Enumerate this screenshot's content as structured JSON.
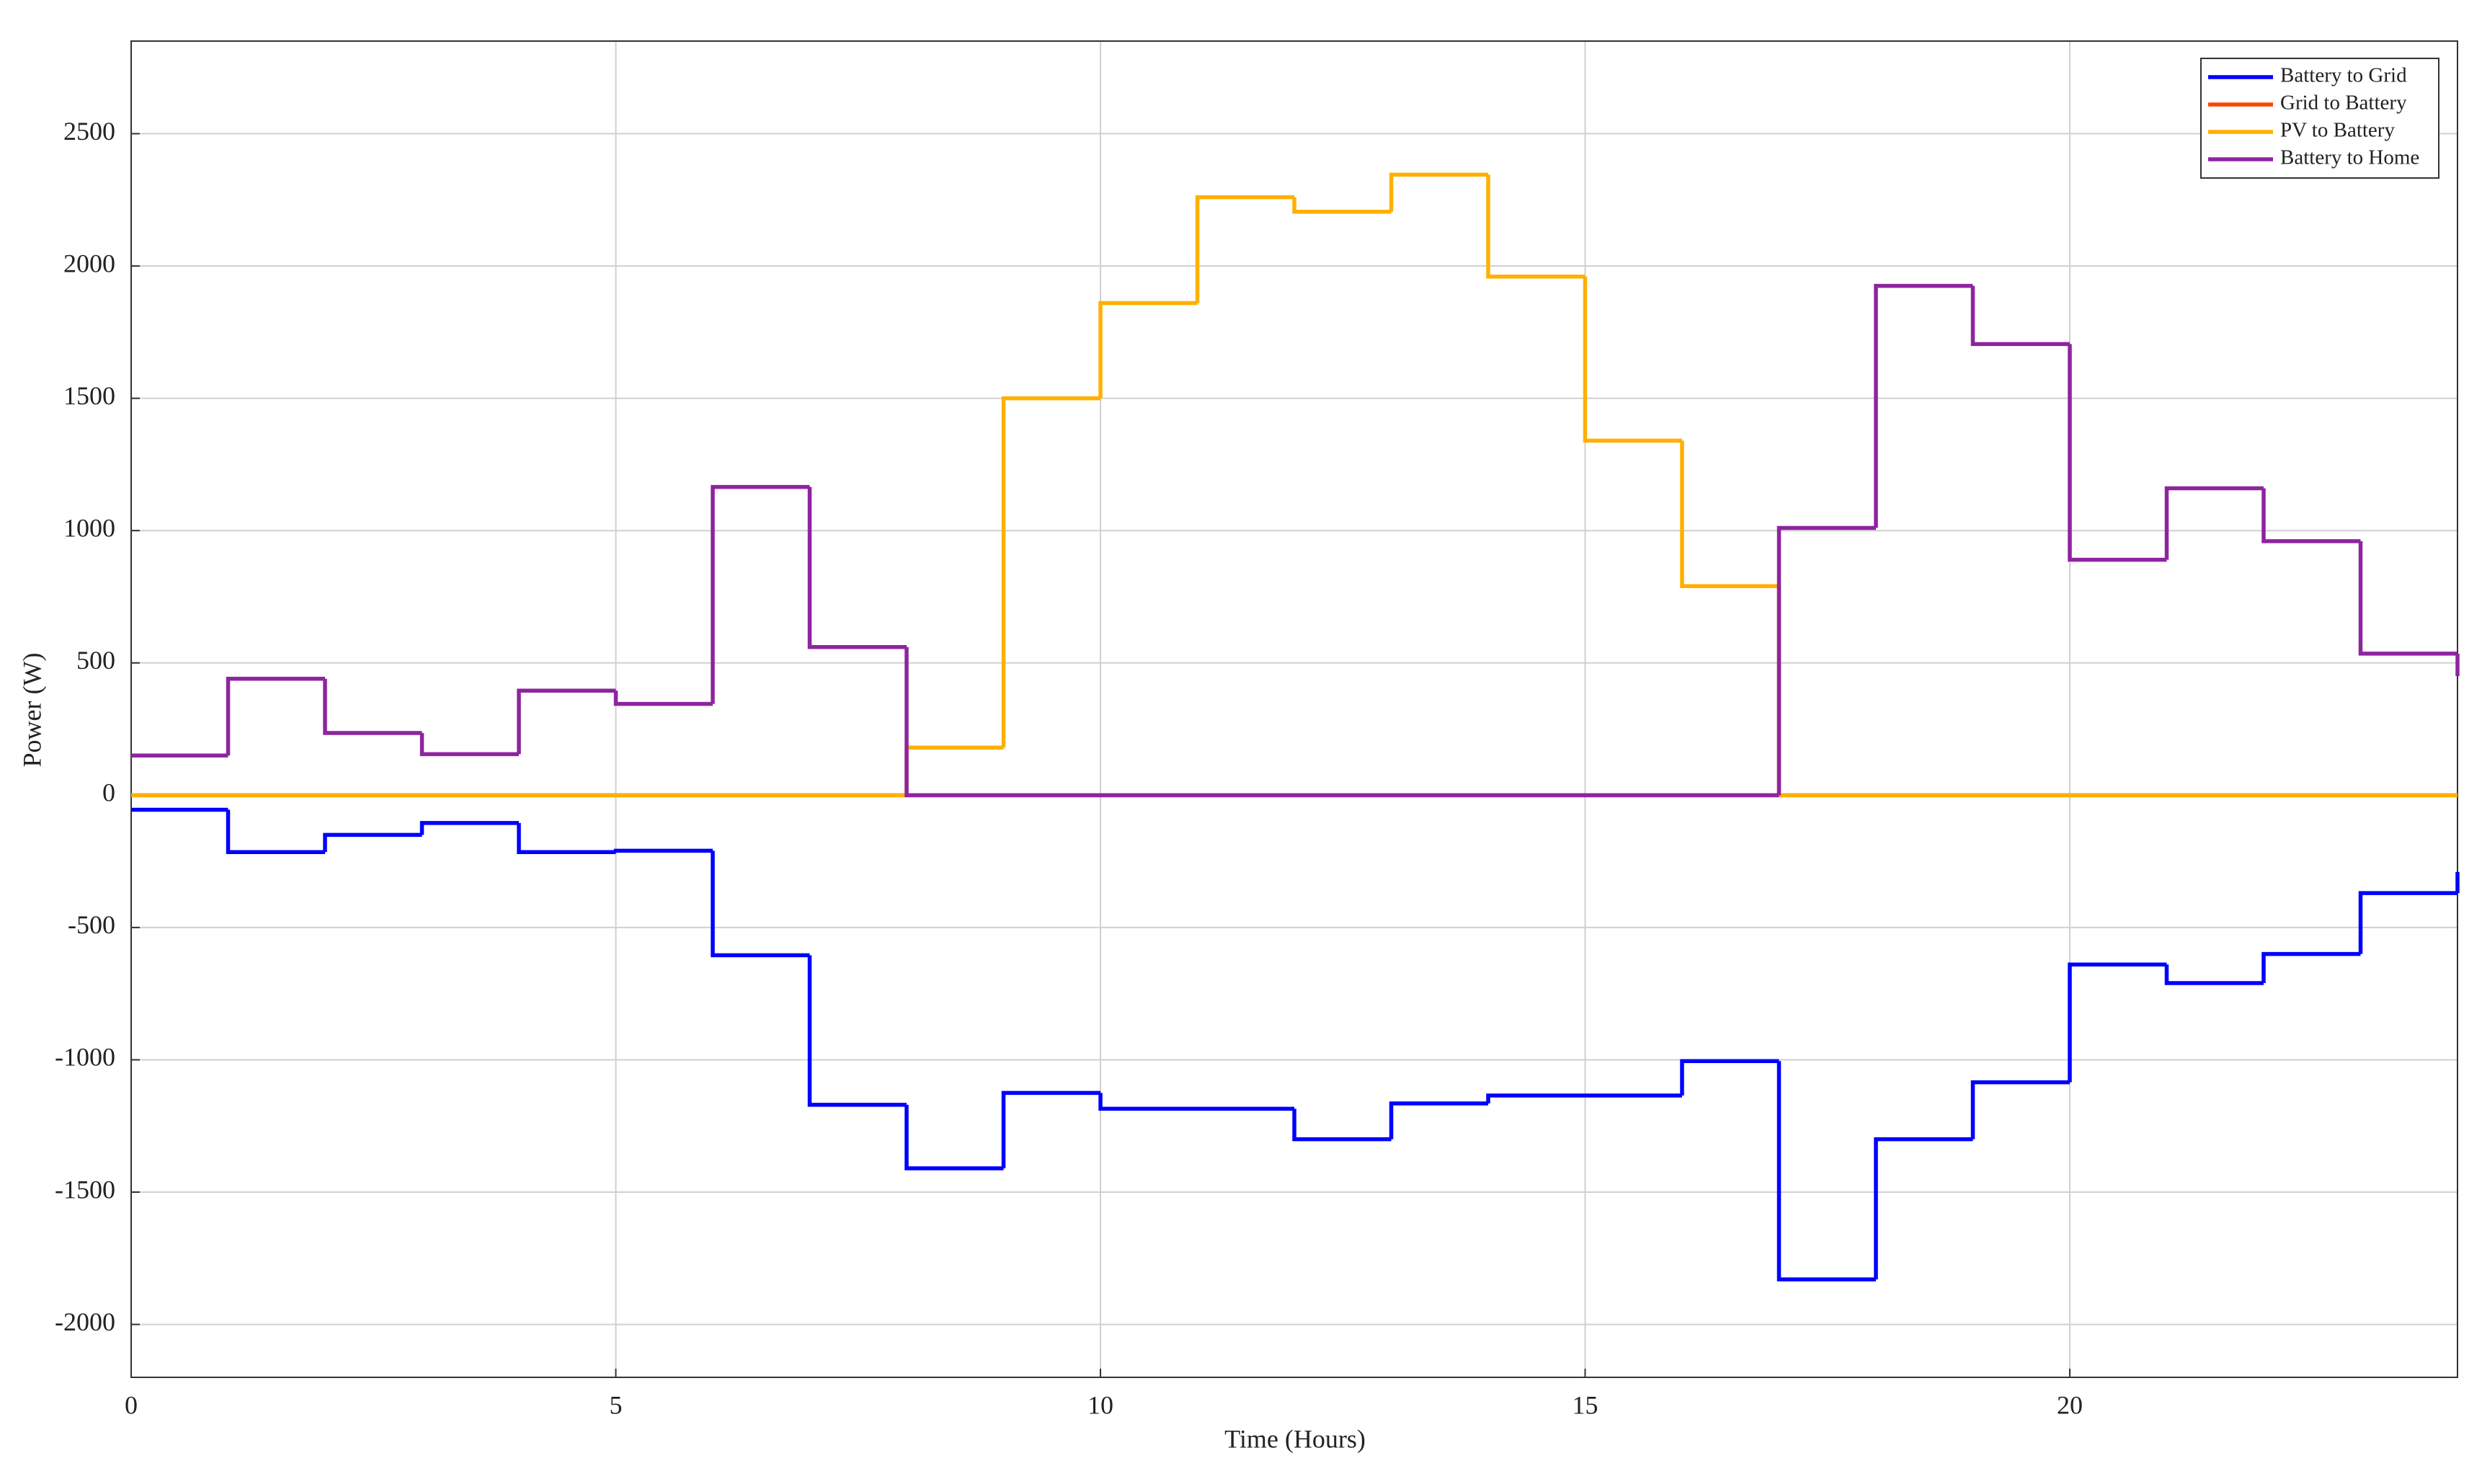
{
  "chart_data": {
    "type": "line",
    "drawstyle": "steps-post",
    "xlabel": "Time (Hours)",
    "ylabel": "Power (W)",
    "x": [
      0,
      1,
      2,
      3,
      4,
      5,
      6,
      7,
      8,
      9,
      10,
      11,
      12,
      13,
      14,
      15,
      16,
      17,
      18,
      19,
      20,
      21,
      22,
      23,
      24
    ],
    "series": [
      {
        "name": "Battery to Grid",
        "color": "#0000ff",
        "values": [
          -55,
          -215,
          -150,
          -105,
          -215,
          -210,
          -605,
          -1170,
          -1410,
          -1125,
          -1185,
          -1185,
          -1300,
          -1165,
          -1135,
          -1135,
          -1005,
          -1830,
          -1300,
          -1085,
          -640,
          -710,
          -600,
          -370,
          -290
        ]
      },
      {
        "name": "Grid to Battery",
        "color": "#ff4500",
        "values": [
          0,
          0,
          0,
          0,
          0,
          0,
          0,
          0,
          0,
          0,
          0,
          0,
          0,
          0,
          0,
          0,
          0,
          0,
          0,
          0,
          0,
          0,
          0,
          0,
          0
        ]
      },
      {
        "name": "PV to Battery",
        "color": "#ffb000",
        "values": [
          0,
          0,
          0,
          0,
          0,
          0,
          0,
          0,
          180,
          1500,
          1860,
          2260,
          2205,
          2345,
          1960,
          1340,
          790,
          0,
          0,
          0,
          0,
          0,
          0,
          0,
          0
        ]
      },
      {
        "name": "Battery to Home",
        "color": "#8e24a0",
        "values": [
          150,
          440,
          235,
          155,
          395,
          345,
          1165,
          560,
          0,
          0,
          0,
          0,
          0,
          0,
          0,
          0,
          0,
          1010,
          1925,
          1705,
          890,
          1160,
          960,
          535,
          450
        ]
      }
    ],
    "xlim": [
      0,
      24
    ],
    "xticks": [
      0,
      5,
      10,
      15,
      20
    ],
    "ylim": [
      -2200,
      2850
    ],
    "yticks": [
      -2000,
      -1500,
      -1000,
      -500,
      0,
      500,
      1000,
      1500,
      2000,
      2500
    ],
    "grid": true,
    "legend": "upper right"
  }
}
